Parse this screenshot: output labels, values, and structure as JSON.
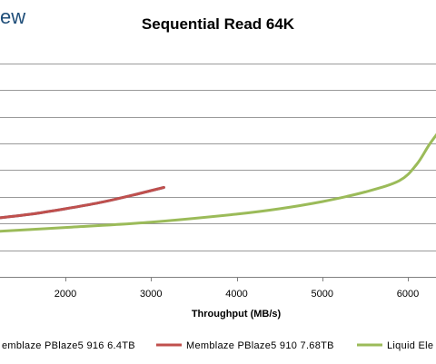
{
  "logo_fragment": "ew",
  "chart_data": {
    "type": "line",
    "title": "Sequential Read 64K",
    "xlabel": "Throughput (MB/s)",
    "ylabel": "",
    "xlim": [
      1200,
      6400
    ],
    "ylim": [
      0,
      8.5
    ],
    "x_ticks": [
      "2000",
      "3000",
      "4000",
      "5000",
      "6000"
    ],
    "x_tick_values": [
      2000,
      3000,
      4000,
      5000,
      6000
    ],
    "y_gridlines": [
      1,
      2,
      3,
      4,
      5,
      6,
      7,
      8
    ],
    "grid": "horizontal",
    "legend_position": "bottom",
    "series": [
      {
        "name": "emblaze PBlaze5 916 6.4TB",
        "color": "#4a6fa5",
        "points": [
          [
            1200,
            2.2
          ],
          [
            1600,
            2.35
          ],
          [
            2000,
            2.55
          ],
          [
            2400,
            2.78
          ],
          [
            2800,
            3.07
          ],
          [
            3150,
            3.35
          ]
        ]
      },
      {
        "name": "Memblaze PBlaze5 910 7.68TB",
        "color": "#c0504d",
        "points": [
          [
            1200,
            2.2
          ],
          [
            1600,
            2.35
          ],
          [
            2000,
            2.55
          ],
          [
            2400,
            2.78
          ],
          [
            2800,
            3.07
          ],
          [
            3150,
            3.35
          ]
        ]
      },
      {
        "name": "Liquid Ele",
        "color": "#9bbb59",
        "points": [
          [
            1200,
            1.7
          ],
          [
            2000,
            1.85
          ],
          [
            3000,
            2.05
          ],
          [
            4000,
            2.35
          ],
          [
            4500,
            2.55
          ],
          [
            5000,
            2.82
          ],
          [
            5500,
            3.18
          ],
          [
            5900,
            3.6
          ],
          [
            6100,
            4.2
          ],
          [
            6250,
            4.95
          ],
          [
            6400,
            5.6
          ]
        ]
      }
    ]
  }
}
